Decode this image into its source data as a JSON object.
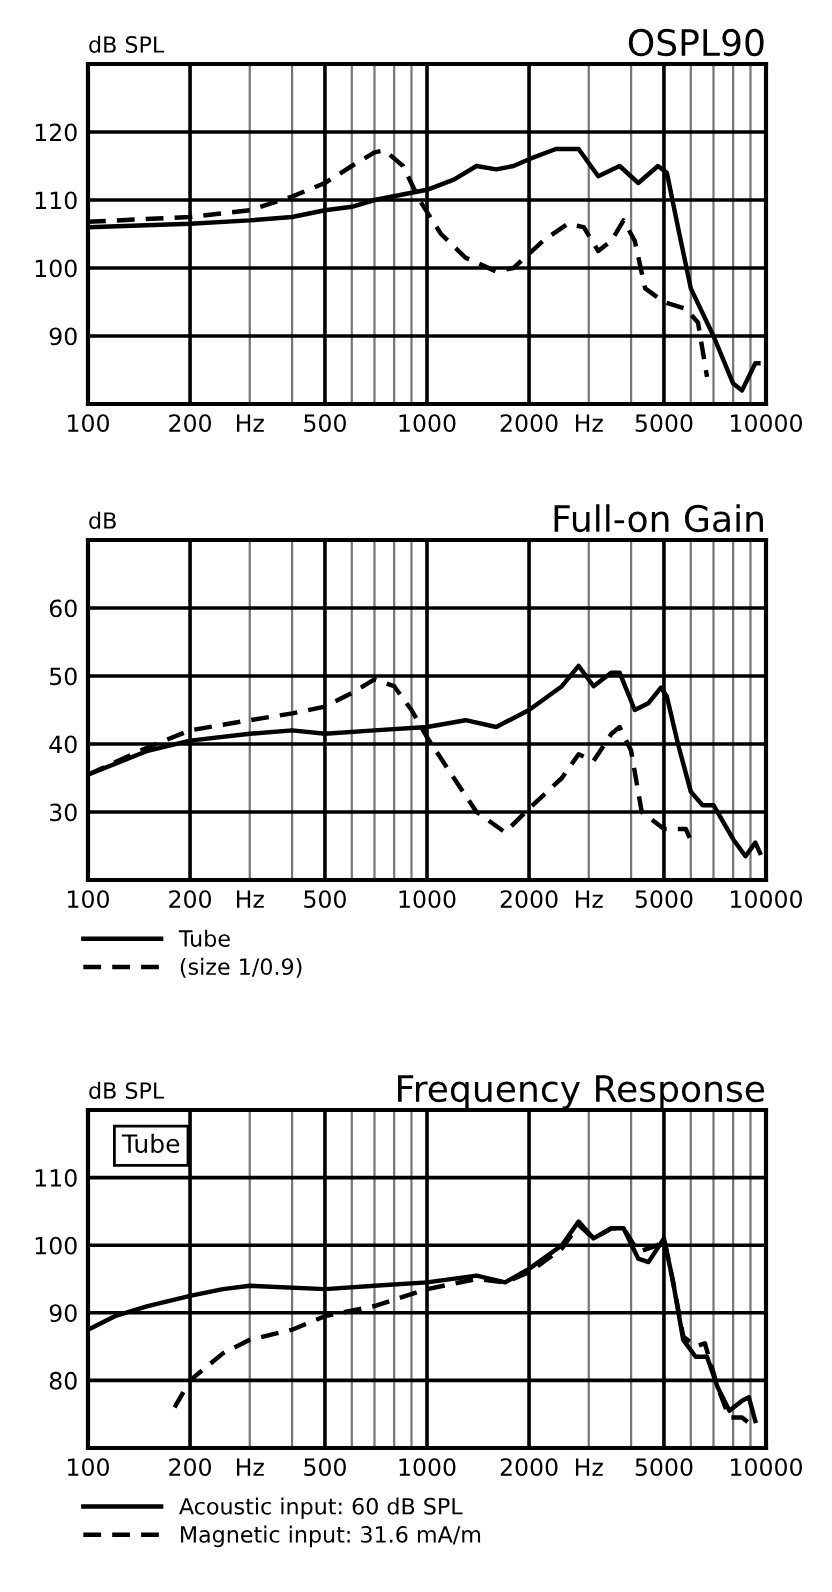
{
  "chart_data": [
    {
      "type": "line",
      "title": "OSPL90",
      "ylabel": "dB SPL",
      "log": "x",
      "grid": true,
      "xlim": [
        100,
        10000
      ],
      "ylim": [
        80,
        130
      ],
      "xticks": [
        100,
        200,
        {
          "value": 300,
          "label": "Hz"
        },
        {
          "value": 400,
          "label": null
        },
        500,
        {
          "value": 600,
          "label": null
        },
        {
          "value": 700,
          "label": null
        },
        {
          "value": 800,
          "label": null
        },
        {
          "value": 900,
          "label": null
        },
        1000,
        2000,
        {
          "value": 3000,
          "label": "Hz"
        },
        {
          "value": 4000,
          "label": null
        },
        5000,
        {
          "value": 6000,
          "label": null
        },
        {
          "value": 7000,
          "label": null
        },
        {
          "value": 8000,
          "label": null
        },
        {
          "value": 9000,
          "label": null
        },
        10000
      ],
      "yticks": [
        90,
        100,
        110,
        120
      ],
      "series": [
        {
          "color": "#000000",
          "line_style": "solid",
          "x": [
            100,
            200,
            300,
            400,
            500,
            600,
            700,
            1000,
            1200,
            1400,
            1600,
            1800,
            2000,
            2400,
            2800,
            3200,
            3700,
            4200,
            4800,
            5100,
            5500,
            6000,
            7000,
            8000,
            8500,
            9300,
            9500
          ],
          "values": [
            106,
            106.5,
            107,
            107.5,
            108.5,
            109,
            110,
            111.5,
            113,
            115,
            114.5,
            115,
            116,
            117.5,
            117.5,
            113.5,
            115,
            112.5,
            115,
            114,
            106,
            97,
            90,
            83,
            82,
            86,
            86
          ]
        },
        {
          "color": "#000000",
          "line_style": "dashed",
          "x": [
            100,
            200,
            300,
            400,
            500,
            600,
            700,
            750,
            850,
            950,
            1100,
            1300,
            1600,
            1800,
            2200,
            2600,
            2900,
            3200,
            3500,
            3800,
            4100,
            4400,
            5000,
            5800,
            6300,
            6700
          ],
          "values": [
            106.8,
            107.5,
            108.5,
            110.5,
            112.5,
            115,
            117,
            117.3,
            115,
            110,
            105,
            101.5,
            99.5,
            100,
            104,
            106.5,
            106,
            102.5,
            104,
            107,
            104,
            97,
            95,
            94,
            92,
            84
          ]
        }
      ]
    },
    {
      "type": "line",
      "title": "Full-on Gain",
      "ylabel": "dB",
      "log": "x",
      "grid": true,
      "legend": "bottom",
      "xlim": [
        100,
        10000
      ],
      "ylim": [
        20,
        70
      ],
      "xticks": [
        100,
        200,
        {
          "value": 300,
          "label": "Hz"
        },
        {
          "value": 400,
          "label": null
        },
        500,
        {
          "value": 600,
          "label": null
        },
        {
          "value": 700,
          "label": null
        },
        {
          "value": 800,
          "label": null
        },
        {
          "value": 900,
          "label": null
        },
        1000,
        2000,
        {
          "value": 3000,
          "label": "Hz"
        },
        {
          "value": 4000,
          "label": null
        },
        5000,
        {
          "value": 6000,
          "label": null
        },
        {
          "value": 7000,
          "label": null
        },
        {
          "value": 8000,
          "label": null
        },
        {
          "value": 9000,
          "label": null
        },
        10000
      ],
      "yticks": [
        30,
        40,
        50,
        60
      ],
      "series": [
        {
          "name": "Tube",
          "color": "#000000",
          "line_style": "solid",
          "x": [
            100,
            150,
            200,
            300,
            400,
            500,
            700,
            1000,
            1300,
            1600,
            2000,
            2500,
            2800,
            3100,
            3500,
            3700,
            4100,
            4500,
            4900,
            5100,
            5500,
            6000,
            6500,
            7000,
            8000,
            8700,
            9300,
            9600
          ],
          "values": [
            35.5,
            39,
            40.5,
            41.5,
            42,
            41.5,
            42,
            42.5,
            43.5,
            42.5,
            45,
            48.5,
            51.5,
            48.5,
            50.5,
            50.5,
            45,
            46,
            48.3,
            47,
            40,
            33,
            31,
            31,
            26,
            23.5,
            25.5,
            24
          ]
        },
        {
          "name": "(size 1/0.9)",
          "color": "#000000",
          "line_style": "dashed",
          "x": [
            100,
            150,
            200,
            300,
            400,
            500,
            600,
            700,
            800,
            900,
            1000,
            1200,
            1400,
            1700,
            2000,
            2500,
            2800,
            3100,
            3500,
            3700,
            4000,
            4300,
            5000,
            5800,
            6100
          ],
          "values": [
            35.5,
            39.5,
            42,
            43.5,
            44.5,
            45.5,
            47.5,
            49.5,
            48.5,
            45,
            41,
            35,
            30,
            27,
            30.5,
            35,
            38.5,
            37.5,
            41.5,
            42.5,
            39,
            30,
            27.5,
            27.5,
            25
          ]
        }
      ]
    },
    {
      "type": "line",
      "title": "Frequency Response",
      "ylabel": "dB SPL",
      "log": "x",
      "grid": true,
      "legend": "bottom",
      "xlim": [
        100,
        10000
      ],
      "ylim": [
        70,
        120
      ],
      "annotations": [
        "Tube"
      ],
      "xticks": [
        100,
        200,
        {
          "value": 300,
          "label": "Hz"
        },
        {
          "value": 400,
          "label": null
        },
        500,
        {
          "value": 600,
          "label": null
        },
        {
          "value": 700,
          "label": null
        },
        {
          "value": 800,
          "label": null
        },
        {
          "value": 900,
          "label": null
        },
        1000,
        2000,
        {
          "value": 3000,
          "label": "Hz"
        },
        {
          "value": 4000,
          "label": null
        },
        5000,
        {
          "value": 6000,
          "label": null
        },
        {
          "value": 7000,
          "label": null
        },
        {
          "value": 8000,
          "label": null
        },
        {
          "value": 9000,
          "label": null
        },
        10000
      ],
      "yticks": [
        80,
        90,
        100,
        110
      ],
      "series": [
        {
          "name": "Acoustic input: 60 dB SPL",
          "color": "#000000",
          "line_style": "solid",
          "x": [
            100,
            120,
            150,
            200,
            250,
            300,
            500,
            700,
            1000,
            1400,
            1700,
            2000,
            2500,
            2800,
            3100,
            3500,
            3800,
            4200,
            4500,
            5000,
            5300,
            5700,
            6200,
            6700,
            7200,
            7800,
            8500,
            8900,
            9300
          ],
          "values": [
            87.5,
            89.5,
            91,
            92.5,
            93.5,
            94,
            93.5,
            94,
            94.5,
            95.5,
            94.5,
            96.5,
            100,
            103.5,
            101,
            102.5,
            102.5,
            98,
            97.5,
            101,
            95,
            86,
            83.5,
            83.5,
            79,
            75.5,
            77,
            77.5,
            74
          ]
        },
        {
          "name": "Magnetic input: 31.6 mA/m",
          "color": "#000000",
          "line_style": "dashed",
          "x": [
            180,
            200,
            250,
            300,
            400,
            500,
            700,
            1000,
            1400,
            1700,
            2000,
            2500,
            2800,
            3100,
            3500,
            3800,
            4200,
            4800,
            5000,
            5300,
            5700,
            6200,
            6600,
            7200,
            7800,
            8500,
            9000
          ],
          "values": [
            76,
            80,
            84,
            86,
            87.5,
            89.5,
            91,
            93.5,
            95,
            94.5,
            96,
            99.5,
            103,
            101,
            102.5,
            102.5,
            99,
            100,
            101,
            95,
            86.5,
            85,
            85.5,
            79,
            74.5,
            74.5,
            73.5
          ]
        }
      ]
    }
  ]
}
